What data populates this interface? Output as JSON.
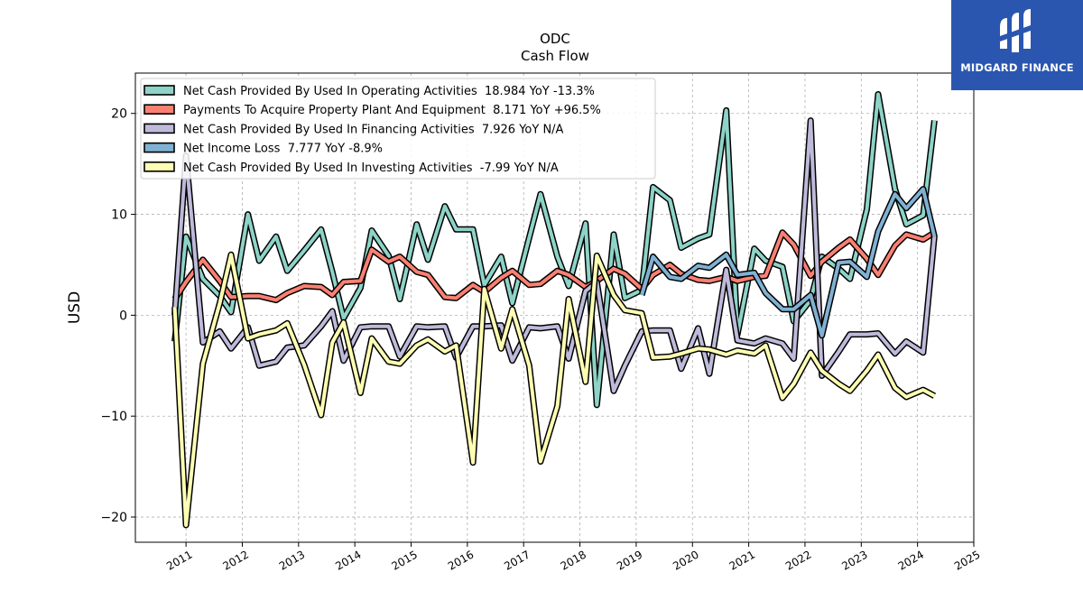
{
  "logo": {
    "text": "MIDGARD FINANCE"
  },
  "chart_data": {
    "type": "line",
    "title": "ODC",
    "subtitle": "Cash Flow",
    "ylabel": "USD",
    "xlabel": "",
    "ylim": [
      -22.5,
      24.0
    ],
    "xlim": [
      2010.1,
      2025.0
    ],
    "yticks": [
      -20,
      -10,
      0,
      10,
      20
    ],
    "xticks": [
      2011,
      2012,
      2013,
      2014,
      2015,
      2016,
      2017,
      2018,
      2019,
      2020,
      2021,
      2022,
      2023,
      2024,
      2025
    ],
    "grid": true,
    "legend_position": "top-left",
    "series": [
      {
        "name": "Net Cash Provided By Used In Operating Activities  18.984 YoY -13.3%",
        "color": "#8dd3c7",
        "points": [
          [
            2010.8,
            -2.6
          ],
          [
            2011.0,
            7.8
          ],
          [
            2011.3,
            3.6
          ],
          [
            2011.6,
            1.9
          ],
          [
            2011.8,
            0.3
          ],
          [
            2012.1,
            10.0
          ],
          [
            2012.3,
            5.4
          ],
          [
            2012.6,
            7.8
          ],
          [
            2012.8,
            4.4
          ],
          [
            2013.1,
            6.4
          ],
          [
            2013.4,
            8.5
          ],
          [
            2013.6,
            4.3
          ],
          [
            2013.8,
            -0.3
          ],
          [
            2014.1,
            2.7
          ],
          [
            2014.3,
            8.4
          ],
          [
            2014.6,
            5.9
          ],
          [
            2014.8,
            1.6
          ],
          [
            2015.1,
            9.0
          ],
          [
            2015.3,
            5.5
          ],
          [
            2015.6,
            10.8
          ],
          [
            2015.8,
            8.5
          ],
          [
            2016.1,
            8.5
          ],
          [
            2016.3,
            3.0
          ],
          [
            2016.6,
            5.8
          ],
          [
            2016.8,
            1.2
          ],
          [
            2017.1,
            7.7
          ],
          [
            2017.3,
            12.0
          ],
          [
            2017.6,
            5.8
          ],
          [
            2017.8,
            2.9
          ],
          [
            2018.1,
            9.1
          ],
          [
            2018.3,
            -8.9
          ],
          [
            2018.6,
            8.0
          ],
          [
            2018.8,
            1.7
          ],
          [
            2019.1,
            2.5
          ],
          [
            2019.3,
            12.7
          ],
          [
            2019.6,
            11.4
          ],
          [
            2019.8,
            6.7
          ],
          [
            2020.1,
            7.6
          ],
          [
            2020.3,
            8.0
          ],
          [
            2020.6,
            20.3
          ],
          [
            2020.8,
            -1.9
          ],
          [
            2021.1,
            6.6
          ],
          [
            2021.3,
            5.4
          ],
          [
            2021.6,
            4.8
          ],
          [
            2021.8,
            -0.6
          ],
          [
            2022.1,
            1.5
          ],
          [
            2022.3,
            5.8
          ],
          [
            2022.6,
            4.6
          ],
          [
            2022.8,
            3.6
          ],
          [
            2023.1,
            10.5
          ],
          [
            2023.3,
            21.9
          ],
          [
            2023.6,
            12.5
          ],
          [
            2023.8,
            9.0
          ],
          [
            2024.1,
            9.9
          ],
          [
            2024.3,
            19.3
          ]
        ]
      },
      {
        "name": "Payments To Acquire Property Plant And Equipment  8.171 YoY +96.5%",
        "color": "#fb8072",
        "points": [
          [
            2010.8,
            1.6
          ],
          [
            2011.0,
            3.3
          ],
          [
            2011.3,
            5.5
          ],
          [
            2011.6,
            3.4
          ],
          [
            2011.8,
            1.8
          ],
          [
            2012.1,
            1.9
          ],
          [
            2012.3,
            1.9
          ],
          [
            2012.6,
            1.5
          ],
          [
            2012.8,
            2.2
          ],
          [
            2013.1,
            2.9
          ],
          [
            2013.4,
            2.8
          ],
          [
            2013.6,
            2.0
          ],
          [
            2013.8,
            3.3
          ],
          [
            2014.1,
            3.4
          ],
          [
            2014.3,
            6.5
          ],
          [
            2014.6,
            5.3
          ],
          [
            2014.8,
            5.8
          ],
          [
            2015.1,
            4.3
          ],
          [
            2015.3,
            4.0
          ],
          [
            2015.6,
            1.8
          ],
          [
            2015.8,
            1.7
          ],
          [
            2016.1,
            3.0
          ],
          [
            2016.3,
            2.3
          ],
          [
            2016.6,
            3.7
          ],
          [
            2016.8,
            4.4
          ],
          [
            2017.1,
            3.0
          ],
          [
            2017.3,
            3.1
          ],
          [
            2017.6,
            4.4
          ],
          [
            2017.8,
            4.0
          ],
          [
            2018.1,
            2.8
          ],
          [
            2018.3,
            3.4
          ],
          [
            2018.6,
            4.6
          ],
          [
            2018.8,
            4.1
          ],
          [
            2019.1,
            2.6
          ],
          [
            2019.3,
            4.0
          ],
          [
            2019.6,
            5.0
          ],
          [
            2019.8,
            4.1
          ],
          [
            2020.1,
            3.5
          ],
          [
            2020.3,
            3.4
          ],
          [
            2020.6,
            3.8
          ],
          [
            2020.8,
            3.4
          ],
          [
            2021.1,
            3.8
          ],
          [
            2021.3,
            3.9
          ],
          [
            2021.6,
            8.2
          ],
          [
            2021.8,
            7.0
          ],
          [
            2022.1,
            3.9
          ],
          [
            2022.3,
            5.3
          ],
          [
            2022.6,
            6.7
          ],
          [
            2022.8,
            7.5
          ],
          [
            2023.1,
            5.6
          ],
          [
            2023.3,
            4.0
          ],
          [
            2023.6,
            6.9
          ],
          [
            2023.8,
            8.0
          ],
          [
            2024.1,
            7.5
          ],
          [
            2024.3,
            8.2
          ]
        ]
      },
      {
        "name": "Net Cash Provided By Used In Financing Activities  7.926 YoY N/A",
        "color": "#bebada",
        "points": [
          [
            2010.8,
            0.0
          ],
          [
            2011.0,
            15.8
          ],
          [
            2011.3,
            -2.7
          ],
          [
            2011.6,
            -1.6
          ],
          [
            2011.8,
            -3.3
          ],
          [
            2012.1,
            -1.2
          ],
          [
            2012.3,
            -5.0
          ],
          [
            2012.6,
            -4.6
          ],
          [
            2012.8,
            -3.2
          ],
          [
            2013.1,
            -3.0
          ],
          [
            2013.4,
            -1.1
          ],
          [
            2013.6,
            0.4
          ],
          [
            2013.8,
            -4.5
          ],
          [
            2014.1,
            -1.2
          ],
          [
            2014.3,
            -1.1
          ],
          [
            2014.6,
            -1.1
          ],
          [
            2014.8,
            -4.1
          ],
          [
            2015.1,
            -1.1
          ],
          [
            2015.3,
            -1.2
          ],
          [
            2015.6,
            -1.1
          ],
          [
            2015.8,
            -4.2
          ],
          [
            2016.1,
            -1.1
          ],
          [
            2016.3,
            -1.1
          ],
          [
            2016.6,
            -1.0
          ],
          [
            2016.8,
            -4.5
          ],
          [
            2017.1,
            -1.2
          ],
          [
            2017.3,
            -1.3
          ],
          [
            2017.6,
            -1.1
          ],
          [
            2017.8,
            -4.3
          ],
          [
            2018.1,
            2.4
          ],
          [
            2018.3,
            3.3
          ],
          [
            2018.6,
            -7.5
          ],
          [
            2018.8,
            -5.0
          ],
          [
            2019.1,
            -1.6
          ],
          [
            2019.3,
            -1.5
          ],
          [
            2019.6,
            -1.5
          ],
          [
            2019.8,
            -5.3
          ],
          [
            2020.1,
            -1.3
          ],
          [
            2020.3,
            -5.8
          ],
          [
            2020.6,
            4.5
          ],
          [
            2020.8,
            -2.5
          ],
          [
            2021.1,
            -2.8
          ],
          [
            2021.3,
            -2.3
          ],
          [
            2021.6,
            -2.8
          ],
          [
            2021.8,
            -4.3
          ],
          [
            2022.1,
            19.3
          ],
          [
            2022.3,
            -6.0
          ],
          [
            2022.6,
            -3.6
          ],
          [
            2022.8,
            -1.9
          ],
          [
            2023.1,
            -1.9
          ],
          [
            2023.3,
            -1.8
          ],
          [
            2023.6,
            -3.8
          ],
          [
            2023.8,
            -2.6
          ],
          [
            2024.1,
            -3.7
          ],
          [
            2024.3,
            7.9
          ]
        ]
      },
      {
        "name": "Net Income Loss  7.777 YoY -8.9%",
        "color": "#80b1d3",
        "points": [
          [
            2019.1,
            2.0
          ],
          [
            2019.3,
            5.8
          ],
          [
            2019.6,
            3.8
          ],
          [
            2019.8,
            3.6
          ],
          [
            2020.1,
            4.9
          ],
          [
            2020.3,
            4.7
          ],
          [
            2020.6,
            6.0
          ],
          [
            2020.8,
            4.0
          ],
          [
            2021.1,
            4.2
          ],
          [
            2021.3,
            2.2
          ],
          [
            2021.6,
            0.6
          ],
          [
            2021.8,
            0.6
          ],
          [
            2022.1,
            2.0
          ],
          [
            2022.3,
            -2.0
          ],
          [
            2022.6,
            5.2
          ],
          [
            2022.8,
            5.3
          ],
          [
            2023.1,
            3.8
          ],
          [
            2023.3,
            8.3
          ],
          [
            2023.6,
            12.0
          ],
          [
            2023.8,
            10.6
          ],
          [
            2024.1,
            12.5
          ],
          [
            2024.3,
            7.8
          ]
        ]
      },
      {
        "name": "Net Cash Provided By Used In Investing Activities  -7.99 YoY N/A",
        "color": "#ffffb3",
        "points": [
          [
            2010.8,
            0.8
          ],
          [
            2011.0,
            -20.8
          ],
          [
            2011.3,
            -4.8
          ],
          [
            2011.6,
            1.2
          ],
          [
            2011.8,
            6.0
          ],
          [
            2012.1,
            -2.3
          ],
          [
            2012.3,
            -1.9
          ],
          [
            2012.6,
            -1.5
          ],
          [
            2012.8,
            -0.8
          ],
          [
            2013.1,
            -4.9
          ],
          [
            2013.4,
            -9.9
          ],
          [
            2013.6,
            -2.7
          ],
          [
            2013.8,
            -0.7
          ],
          [
            2014.1,
            -7.7
          ],
          [
            2014.3,
            -2.3
          ],
          [
            2014.6,
            -4.6
          ],
          [
            2014.8,
            -4.8
          ],
          [
            2015.1,
            -3.0
          ],
          [
            2015.3,
            -2.4
          ],
          [
            2015.6,
            -3.6
          ],
          [
            2015.8,
            -3.0
          ],
          [
            2016.1,
            -14.6
          ],
          [
            2016.3,
            2.6
          ],
          [
            2016.6,
            -3.3
          ],
          [
            2016.8,
            0.6
          ],
          [
            2017.1,
            -5.0
          ],
          [
            2017.3,
            -14.5
          ],
          [
            2017.6,
            -9.0
          ],
          [
            2017.8,
            1.6
          ],
          [
            2018.1,
            -6.6
          ],
          [
            2018.3,
            5.9
          ],
          [
            2018.6,
            2.0
          ],
          [
            2018.8,
            0.5
          ],
          [
            2019.1,
            0.2
          ],
          [
            2019.3,
            -4.2
          ],
          [
            2019.6,
            -4.1
          ],
          [
            2019.8,
            -3.8
          ],
          [
            2020.1,
            -3.3
          ],
          [
            2020.3,
            -3.4
          ],
          [
            2020.6,
            -3.9
          ],
          [
            2020.8,
            -3.5
          ],
          [
            2021.1,
            -3.8
          ],
          [
            2021.3,
            -3.0
          ],
          [
            2021.6,
            -8.2
          ],
          [
            2021.8,
            -6.8
          ],
          [
            2022.1,
            -3.7
          ],
          [
            2022.3,
            -5.5
          ],
          [
            2022.6,
            -6.8
          ],
          [
            2022.8,
            -7.5
          ],
          [
            2023.1,
            -5.5
          ],
          [
            2023.3,
            -3.9
          ],
          [
            2023.6,
            -7.2
          ],
          [
            2023.8,
            -8.1
          ],
          [
            2024.1,
            -7.4
          ],
          [
            2024.3,
            -8.0
          ]
        ]
      }
    ]
  }
}
